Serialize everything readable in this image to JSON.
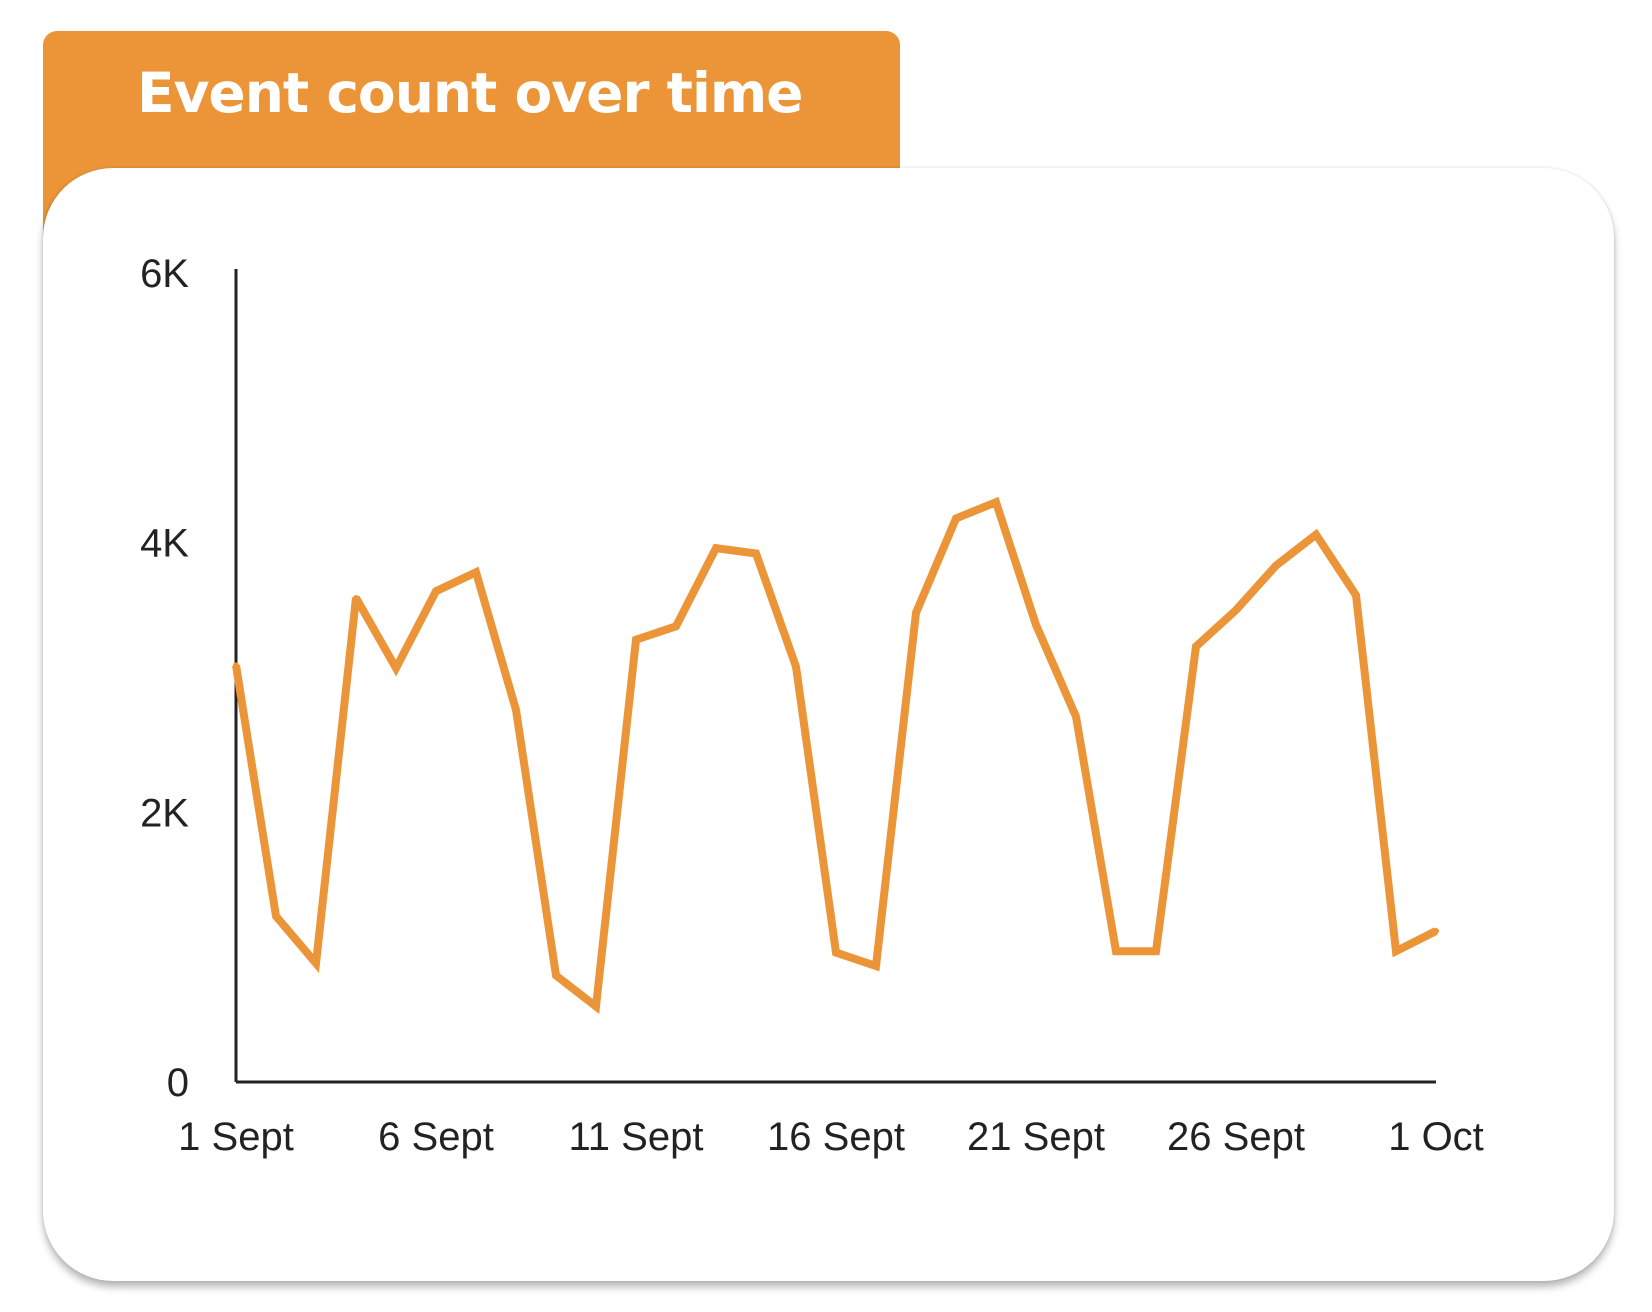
{
  "chart_data": {
    "type": "line",
    "title": "Event count over time",
    "xlabel": "",
    "ylabel": "",
    "ylim": [
      0,
      6000
    ],
    "xlim": [
      "2023-09-01",
      "2023-10-01"
    ],
    "grid": false,
    "y_ticks": [
      {
        "value": 0,
        "label": "0"
      },
      {
        "value": 2000,
        "label": "2K"
      },
      {
        "value": 4000,
        "label": "4K"
      },
      {
        "value": 6000,
        "label": "6K"
      }
    ],
    "x_ticks": [
      {
        "value": "2023-09-01",
        "label": "1 Sept"
      },
      {
        "value": "2023-09-06",
        "label": "6 Sept"
      },
      {
        "value": "2023-09-11",
        "label": "11 Sept"
      },
      {
        "value": "2023-09-16",
        "label": "16 Sept"
      },
      {
        "value": "2023-09-21",
        "label": "21 Sept"
      },
      {
        "value": "2023-09-26",
        "label": "26 Sept"
      },
      {
        "value": "2023-10-01",
        "label": "1 Oct"
      }
    ],
    "x": [
      "2023-09-01",
      "2023-09-02",
      "2023-09-03",
      "2023-09-04",
      "2023-09-05",
      "2023-09-06",
      "2023-09-07",
      "2023-09-08",
      "2023-09-09",
      "2023-09-10",
      "2023-09-11",
      "2023-09-12",
      "2023-09-13",
      "2023-09-14",
      "2023-09-15",
      "2023-09-16",
      "2023-09-17",
      "2023-09-18",
      "2023-09-19",
      "2023-09-20",
      "2023-09-21",
      "2023-09-22",
      "2023-09-23",
      "2023-09-24",
      "2023-09-25",
      "2023-09-26",
      "2023-09-27",
      "2023-09-28",
      "2023-09-29",
      "2023-09-30",
      "2023-10-01"
    ],
    "series": [
      {
        "color": "#EB9538",
        "values": [
          3090,
          1230,
          880,
          3590,
          3070,
          3640,
          3780,
          2760,
          790,
          560,
          3280,
          3380,
          3960,
          3920,
          3080,
          960,
          860,
          3480,
          4180,
          4300,
          3390,
          2710,
          970,
          970,
          3230,
          3500,
          3830,
          4060,
          3610,
          970,
          1120
        ]
      }
    ]
  }
}
